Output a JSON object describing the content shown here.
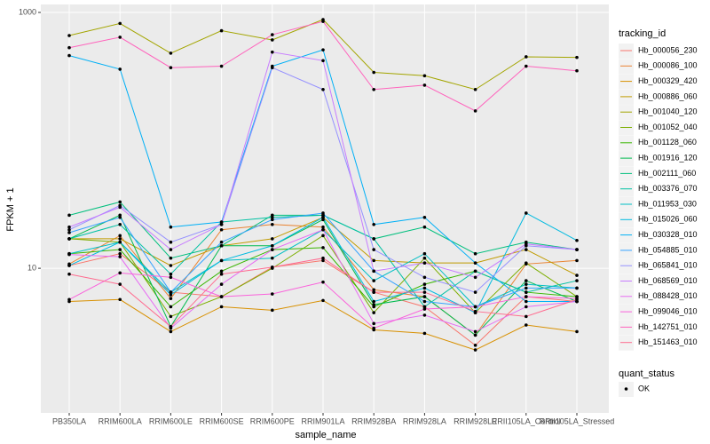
{
  "chart_data": {
    "type": "line",
    "x_label": "sample_name",
    "y_label": "FPKM + 1",
    "log_scale": true,
    "grid": true,
    "ylim": [
      0.74,
      1155
    ],
    "yticks": [
      10,
      1000
    ],
    "legend_title": "tracking_id",
    "shape_legend": {
      "title": "quant_status",
      "labels": [
        "OK"
      ]
    },
    "point_color": "#000000",
    "categories": [
      "PB350LA",
      "RRIM600LA",
      "RRIM600LE",
      "RRIM600SE",
      "RRIM600PE",
      "RRIM901LA",
      "RRIM928BA",
      "RRIM928LA",
      "RRIM928LE",
      "RRII105LA_Control",
      "RRII105LA_Stressed"
    ],
    "series": [
      {
        "name": "Hb_000056_230",
        "color": "#F8766D",
        "values": [
          10.5,
          13,
          6.5,
          6,
          10.2,
          11.5,
          6.5,
          5,
          2.5,
          6,
          5.5
        ]
      },
      {
        "name": "Hb_000086_100",
        "color": "#EA8331",
        "values": [
          10.8,
          18,
          5.8,
          20,
          22,
          21,
          6.8,
          6,
          3,
          10.8,
          11.5
        ]
      },
      {
        "name": "Hb_000329_420",
        "color": "#D89000",
        "values": [
          5.5,
          5.7,
          3.2,
          5,
          4.7,
          5.6,
          3.3,
          3.1,
          2.3,
          3.6,
          3.2
        ]
      },
      {
        "name": "Hb_000886_060",
        "color": "#C09B00",
        "values": [
          17,
          17,
          10.5,
          15,
          17,
          25,
          11.5,
          11,
          11,
          14,
          8.8
        ]
      },
      {
        "name": "Hb_001040_120",
        "color": "#A3A500",
        "values": [
          660,
          820,
          480,
          720,
          610,
          880,
          340,
          320,
          250,
          450,
          445
        ]
      },
      {
        "name": "Hb_001052_040",
        "color": "#7CAE00",
        "values": [
          17,
          16,
          4.2,
          6,
          10,
          18,
          4.5,
          12,
          4.5,
          11,
          6
        ]
      },
      {
        "name": "Hb_001128_060",
        "color": "#39B600",
        "values": [
          13,
          14,
          5,
          9.5,
          14,
          14.5,
          5,
          7.5,
          9.5,
          6.5,
          6
        ]
      },
      {
        "name": "Hb_001916_120",
        "color": "#00BB4E",
        "values": [
          17,
          26,
          3.5,
          15,
          15,
          24,
          5.2,
          6,
          3,
          8,
          5.5
        ]
      },
      {
        "name": "Hb_002111_060",
        "color": "#00BF7D",
        "values": [
          26,
          33,
          12,
          15,
          26,
          26,
          17,
          21,
          13,
          16,
          14
        ]
      },
      {
        "name": "Hb_003376_070",
        "color": "#00C1A3",
        "values": [
          17,
          22,
          9,
          23,
          25,
          26,
          17,
          5,
          9.5,
          6.5,
          8
        ]
      },
      {
        "name": "Hb_011953_030",
        "color": "#00BFC4",
        "values": [
          13,
          16,
          6.5,
          11.5,
          12,
          20,
          8,
          13,
          5,
          7.5,
          7
        ]
      },
      {
        "name": "Hb_015026_060",
        "color": "#00BAE0",
        "values": [
          10.5,
          16,
          6.2,
          11.5,
          15,
          25,
          5.5,
          7,
          4.5,
          27,
          16.5
        ]
      },
      {
        "name": "Hb_030328_010",
        "color": "#00B0F6",
        "values": [
          460,
          360,
          21,
          23,
          380,
          510,
          22,
          25,
          11,
          5.5,
          5.5
        ]
      },
      {
        "name": "Hb_054885_010",
        "color": "#35A2FF",
        "values": [
          19,
          25,
          6.5,
          16,
          24,
          27,
          9.5,
          5.5,
          5,
          7,
          7
        ]
      },
      {
        "name": "Hb_065841_010",
        "color": "#9590FF",
        "values": [
          20,
          31,
          16,
          22,
          370,
          250,
          14,
          8.5,
          6.5,
          15,
          14
        ]
      },
      {
        "name": "Hb_068569_010",
        "color": "#C77CFF",
        "values": [
          21,
          30,
          14,
          22,
          490,
          420,
          9.5,
          11,
          8.5,
          15.5,
          14
        ]
      },
      {
        "name": "Hb_088428_010",
        "color": "#E76BF3",
        "values": [
          12.8,
          12.3,
          3.4,
          7.5,
          14,
          20,
          3.7,
          4.3,
          3.2,
          5,
          5.5
        ]
      },
      {
        "name": "Hb_099046_010",
        "color": "#FA62DB",
        "values": [
          5.7,
          9.2,
          8.5,
          6,
          6.3,
          7.8,
          3.4,
          4.8,
          5,
          6,
          5.8
        ]
      },
      {
        "name": "Hb_142751_010",
        "color": "#FF62BC",
        "values": [
          530,
          640,
          370,
          380,
          670,
          850,
          250,
          270,
          170,
          380,
          350
        ]
      },
      {
        "name": "Hb_151463_010",
        "color": "#FF6C90",
        "values": [
          9,
          7.5,
          3.5,
          9,
          10.2,
          12,
          6.5,
          6.5,
          4.6,
          4.2,
          5.7
        ]
      }
    ]
  }
}
